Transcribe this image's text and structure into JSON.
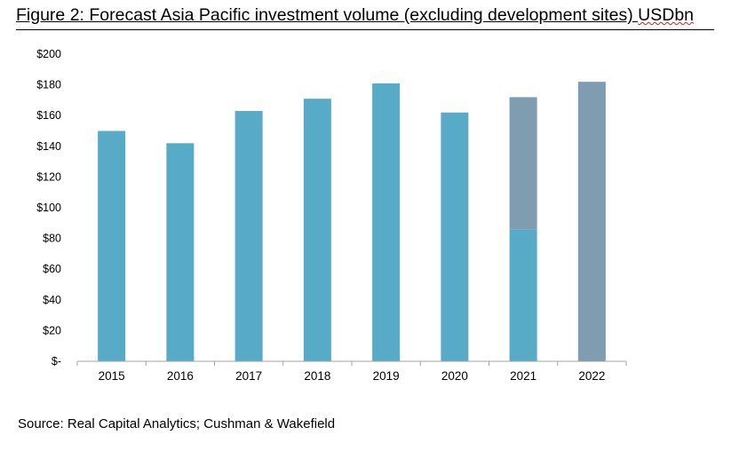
{
  "header": {
    "title_main": "Figure 2: Forecast Asia Pacific investment volume (excluding development sites) ",
    "title_unit": "USDbn"
  },
  "footer": {
    "source": "Source: Real Capital Analytics; Cushman & Wakefield"
  },
  "colors": {
    "actual": "#57abc7",
    "forecast": "#7f9cb1",
    "axis": "#a6a6a6"
  },
  "chart_data": {
    "type": "bar",
    "stacked": true,
    "categories": [
      "2015",
      "2016",
      "2017",
      "2018",
      "2019",
      "2020",
      "2021",
      "2022"
    ],
    "series": [
      {
        "key": "actual",
        "values": [
          150,
          142,
          163,
          171,
          181,
          162,
          86,
          0
        ]
      },
      {
        "key": "forecast",
        "values": [
          0,
          0,
          0,
          0,
          0,
          0,
          86,
          182
        ]
      }
    ],
    "ylim": [
      0,
      200
    ],
    "yticks": [
      {
        "v": 0,
        "label": "$-"
      },
      {
        "v": 20,
        "label": "$20"
      },
      {
        "v": 40,
        "label": "$40"
      },
      {
        "v": 60,
        "label": "$60"
      },
      {
        "v": 80,
        "label": "$80"
      },
      {
        "v": 100,
        "label": "$100"
      },
      {
        "v": 120,
        "label": "$120"
      },
      {
        "v": 140,
        "label": "$140"
      },
      {
        "v": 160,
        "label": "$160"
      },
      {
        "v": 180,
        "label": "$180"
      },
      {
        "v": 200,
        "label": "$200"
      }
    ],
    "grid": false,
    "legend": "none"
  }
}
